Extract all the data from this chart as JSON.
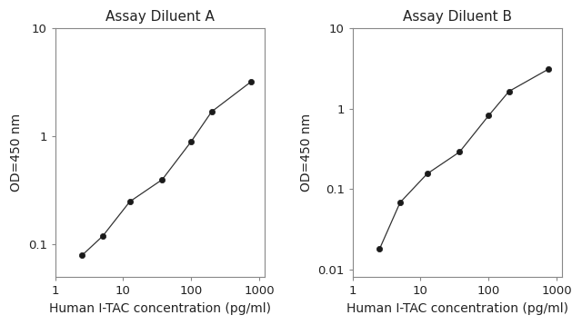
{
  "chart_A": {
    "title": "Assay Diluent A",
    "x": [
      2.5,
      5,
      12.5,
      37.5,
      100,
      200,
      750
    ],
    "y": [
      0.08,
      0.12,
      0.25,
      0.4,
      0.9,
      1.7,
      3.2
    ],
    "xlim": [
      1.8,
      1200
    ],
    "ylim": [
      0.05,
      10
    ],
    "yticks": [
      0.1,
      1,
      10
    ],
    "ytick_labels": [
      "0.1",
      "1",
      "10"
    ],
    "xticks": [
      1,
      10,
      100,
      1000
    ],
    "xtick_labels": [
      "1",
      "10",
      "100",
      "1000"
    ],
    "ylabel": "OD=450 nm",
    "xlabel": "Human I-TAC concentration (pg/ml)"
  },
  "chart_B": {
    "title": "Assay Diluent B",
    "x": [
      2.5,
      5,
      12.5,
      37.5,
      100,
      200,
      750
    ],
    "y": [
      0.018,
      0.068,
      0.155,
      0.29,
      0.82,
      1.65,
      3.1
    ],
    "xlim": [
      1.8,
      1200
    ],
    "ylim": [
      0.008,
      10
    ],
    "yticks": [
      0.01,
      0.1,
      1,
      10
    ],
    "ytick_labels": [
      "0.01",
      "0.1",
      "1",
      "10"
    ],
    "xticks": [
      1,
      10,
      100,
      1000
    ],
    "xtick_labels": [
      "1",
      "10",
      "100",
      "1000"
    ],
    "ylabel": "OD=450 nm",
    "xlabel": "Human I-TAC concentration (pg/ml)"
  },
  "line_color": "#333333",
  "marker_color": "#1a1a1a",
  "marker_style": "o",
  "marker_size": 4.5,
  "line_width": 0.9,
  "title_fontsize": 11,
  "label_fontsize": 10,
  "tick_fontsize": 9.5,
  "bg_color": "#ffffff",
  "spine_color": "#888888"
}
